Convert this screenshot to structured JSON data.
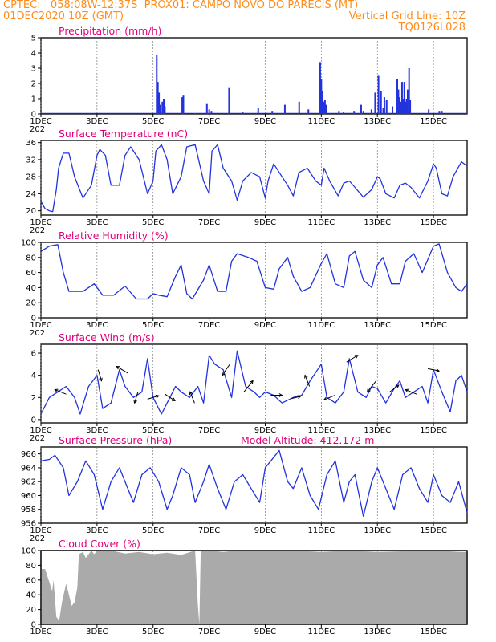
{
  "header": {
    "line1": "CPTEC:   058:08W-12:37S  PROX01: CAMPO NOVO DO PARECIS (MT)",
    "line2_left": "01DEC2020 10Z (GMT)",
    "line2_right": "Vertical Grid Line: 10Z",
    "line3_right": "TQ0126L028"
  },
  "model_altitude": "Model Altitude: 412.172 m",
  "x_axis": {
    "start": "2020-12-01T10Z",
    "days_shown": 15.2,
    "tick_labels": [
      "1DEC",
      "3DEC",
      "5DEC",
      "7DEC",
      "9DEC",
      "11DEC",
      "13DEC",
      "15DEC"
    ],
    "tick_days": [
      0,
      2,
      4,
      6,
      8,
      10,
      12,
      14
    ],
    "year_fragment": "202"
  },
  "colors": {
    "header": "#ff8c1a",
    "title": "#e0007a",
    "line": "#2233dd",
    "cloud": "#aaaaaa"
  },
  "chart_data": [
    {
      "type": "bar",
      "title": "Precipitation (mm/h)",
      "ylim": [
        0,
        5
      ],
      "yticks": [
        0,
        1,
        2,
        3,
        4,
        5
      ],
      "values": [
        [
          4.13,
          3.9
        ],
        [
          4.17,
          2.1
        ],
        [
          4.21,
          1.4
        ],
        [
          4.25,
          0.6
        ],
        [
          4.33,
          0.8
        ],
        [
          4.38,
          1.0
        ],
        [
          4.42,
          0.5
        ],
        [
          5.04,
          1.1
        ],
        [
          5.08,
          1.2
        ],
        [
          5.5,
          0.05
        ],
        [
          5.92,
          0.7
        ],
        [
          6.0,
          0.3
        ],
        [
          6.08,
          0.2
        ],
        [
          6.71,
          1.7
        ],
        [
          7.2,
          0.1
        ],
        [
          7.75,
          0.4
        ],
        [
          8.25,
          0.2
        ],
        [
          8.7,
          0.6
        ],
        [
          9.21,
          0.8
        ],
        [
          9.54,
          0.3
        ],
        [
          9.96,
          3.4
        ],
        [
          10.0,
          2.3
        ],
        [
          10.04,
          1.5
        ],
        [
          10.08,
          0.8
        ],
        [
          10.13,
          0.9
        ],
        [
          10.17,
          0.6
        ],
        [
          10.63,
          0.2
        ],
        [
          10.79,
          0.1
        ],
        [
          11.17,
          0.2
        ],
        [
          11.42,
          0.6
        ],
        [
          11.5,
          0.2
        ],
        [
          11.79,
          0.3
        ],
        [
          11.92,
          1.4
        ],
        [
          12.04,
          2.5
        ],
        [
          12.13,
          1.5
        ],
        [
          12.21,
          0.4
        ],
        [
          12.25,
          1.1
        ],
        [
          12.33,
          0.9
        ],
        [
          12.54,
          0.5
        ],
        [
          12.71,
          2.3
        ],
        [
          12.75,
          1.6
        ],
        [
          12.79,
          1.1
        ],
        [
          12.83,
          0.8
        ],
        [
          12.88,
          2.1
        ],
        [
          12.92,
          1.0
        ],
        [
          12.96,
          2.1
        ],
        [
          13.0,
          0.8
        ],
        [
          13.04,
          1.0
        ],
        [
          13.08,
          1.6
        ],
        [
          13.13,
          3.0
        ],
        [
          13.17,
          0.9
        ],
        [
          13.83,
          0.3
        ],
        [
          14.21,
          0.2
        ],
        [
          14.3,
          0.2
        ]
      ]
    },
    {
      "type": "line",
      "title": "Surface Temperature (nC)",
      "ylim": [
        19,
        36.5
      ],
      "yticks": [
        20,
        24,
        28,
        32,
        36
      ],
      "x": [
        0,
        0.15,
        0.3,
        0.42,
        0.55,
        0.63,
        0.8,
        1.0,
        1.2,
        1.5,
        1.8,
        2.0,
        2.1,
        2.3,
        2.5,
        2.8,
        3.0,
        3.2,
        3.5,
        3.8,
        4.0,
        4.1,
        4.3,
        4.5,
        4.7,
        5.0,
        5.2,
        5.5,
        5.8,
        6.0,
        6.1,
        6.3,
        6.5,
        6.8,
        7.0,
        7.2,
        7.5,
        7.8,
        8.0,
        8.1,
        8.3,
        8.6,
        8.8,
        9.0,
        9.2,
        9.5,
        9.8,
        10.0,
        10.1,
        10.3,
        10.6,
        10.8,
        11.0,
        11.2,
        11.5,
        11.8,
        12.0,
        12.1,
        12.3,
        12.6,
        12.8,
        13.0,
        13.2,
        13.5,
        13.8,
        14.0,
        14.1,
        14.3,
        14.5,
        14.7,
        15.0,
        15.2
      ],
      "y": [
        22.2,
        20.5,
        20,
        19.8,
        25,
        30,
        33.5,
        33.5,
        28,
        23,
        26,
        33,
        34.4,
        33,
        26,
        26,
        33,
        35,
        32,
        24,
        27,
        34,
        35.5,
        32,
        24,
        28,
        35,
        35.5,
        27,
        24,
        34,
        35.5,
        30,
        27,
        22.5,
        27,
        29,
        28,
        23,
        27,
        31,
        28,
        26,
        23.5,
        29,
        30,
        27,
        26,
        30,
        27,
        23.5,
        26.5,
        27,
        25.5,
        23.2,
        25,
        28,
        27.5,
        24,
        23,
        26,
        26.5,
        25.5,
        23,
        27,
        31,
        30,
        24,
        23.5,
        28,
        31.5,
        30.5
      ]
    },
    {
      "type": "line",
      "title": "Relative Humidity (%)",
      "ylim": [
        0,
        100
      ],
      "yticks": [
        0,
        20,
        40,
        60,
        80,
        100
      ],
      "x": [
        0,
        0.3,
        0.6,
        0.8,
        1.0,
        1.5,
        1.9,
        2.2,
        2.6,
        3.0,
        3.4,
        3.8,
        4.0,
        4.2,
        4.5,
        4.8,
        5.0,
        5.2,
        5.4,
        5.8,
        6.0,
        6.3,
        6.6,
        6.8,
        7.0,
        7.4,
        7.7,
        8.0,
        8.3,
        8.5,
        8.8,
        9.0,
        9.3,
        9.6,
        10.0,
        10.2,
        10.5,
        10.8,
        11.0,
        11.2,
        11.5,
        11.8,
        12.0,
        12.2,
        12.5,
        12.8,
        13.0,
        13.3,
        13.6,
        14.0,
        14.2,
        14.5,
        14.8,
        15.0,
        15.2
      ],
      "y": [
        88,
        95,
        97,
        60,
        35,
        35,
        45,
        30,
        30,
        42,
        25,
        25,
        32,
        30,
        28,
        55,
        70,
        32,
        25,
        50,
        70,
        35,
        35,
        75,
        85,
        80,
        75,
        40,
        38,
        65,
        80,
        55,
        35,
        40,
        72,
        85,
        45,
        40,
        82,
        88,
        50,
        40,
        70,
        80,
        45,
        45,
        75,
        85,
        60,
        95,
        98,
        60,
        40,
        35,
        45
      ]
    },
    {
      "type": "line",
      "title": "Surface Wind (m/s)",
      "ylim": [
        -0.3,
        6.8
      ],
      "yticks": [
        0,
        2,
        4,
        6
      ],
      "x": [
        0,
        0.3,
        0.6,
        0.9,
        1.2,
        1.4,
        1.7,
        2.0,
        2.2,
        2.5,
        2.8,
        3.0,
        3.3,
        3.6,
        3.8,
        4.0,
        4.3,
        4.6,
        4.8,
        5.0,
        5.3,
        5.6,
        5.8,
        6.0,
        6.2,
        6.5,
        6.8,
        7.0,
        7.3,
        7.6,
        7.8,
        8.0,
        8.3,
        8.6,
        9.0,
        9.3,
        9.6,
        10.0,
        10.2,
        10.5,
        10.8,
        11.0,
        11.3,
        11.6,
        11.8,
        12.0,
        12.3,
        12.6,
        12.8,
        13.0,
        13.3,
        13.6,
        13.8,
        14.0,
        14.3,
        14.6,
        14.8,
        15.0,
        15.2
      ],
      "y": [
        0.5,
        2.0,
        2.5,
        3.0,
        2.0,
        0.5,
        3.0,
        4.0,
        1.0,
        1.5,
        4.5,
        3.0,
        2.0,
        2.5,
        5.5,
        2.0,
        0.5,
        2.0,
        3.0,
        2.5,
        2.0,
        3.0,
        1.5,
        5.8,
        5.0,
        4.5,
        2.0,
        6.2,
        3.0,
        2.5,
        2.0,
        2.5,
        2.2,
        1.5,
        2.0,
        2.2,
        3.5,
        5.0,
        2.0,
        1.5,
        2.5,
        5.5,
        2.5,
        2.0,
        3.0,
        2.8,
        1.5,
        2.8,
        3.5,
        2.0,
        2.5,
        3.0,
        1.5,
        4.5,
        2.5,
        0.7,
        3.5,
        4.0,
        2.5
      ],
      "arrows": [
        [
          0.7,
          -1,
          0.4
        ],
        [
          2.1,
          0.3,
          -1
        ],
        [
          2.9,
          -1,
          0.6
        ],
        [
          3.4,
          -0.3,
          -1
        ],
        [
          4.0,
          1,
          0.3
        ],
        [
          4.6,
          0.9,
          -0.6
        ],
        [
          5.4,
          -0.4,
          1
        ],
        [
          6.6,
          -0.7,
          -1
        ],
        [
          7.4,
          0.8,
          1
        ],
        [
          8.4,
          1,
          0
        ],
        [
          9.1,
          0.8,
          0.2
        ],
        [
          9.5,
          -0.4,
          1
        ],
        [
          10.3,
          -1,
          -0.4
        ],
        [
          11.1,
          1,
          0.6
        ],
        [
          11.8,
          -0.8,
          -1
        ],
        [
          12.6,
          0.8,
          0.6
        ],
        [
          13.2,
          -1,
          0.4
        ],
        [
          14.0,
          1,
          -0.2
        ]
      ]
    },
    {
      "type": "line",
      "title": "Surface Pressure (hPa)",
      "ylim": [
        956,
        967
      ],
      "yticks": [
        956,
        958,
        960,
        962,
        964,
        966
      ],
      "x": [
        0,
        0.3,
        0.5,
        0.8,
        1.0,
        1.3,
        1.6,
        1.9,
        2.2,
        2.5,
        2.8,
        3.0,
        3.3,
        3.6,
        3.9,
        4.2,
        4.5,
        4.7,
        5.0,
        5.3,
        5.5,
        5.8,
        6.0,
        6.3,
        6.6,
        6.9,
        7.2,
        7.5,
        7.8,
        8.0,
        8.2,
        8.5,
        8.8,
        9.0,
        9.3,
        9.6,
        9.9,
        10.2,
        10.5,
        10.8,
        11.0,
        11.2,
        11.5,
        11.8,
        12.0,
        12.3,
        12.6,
        12.9,
        13.2,
        13.5,
        13.8,
        14.0,
        14.3,
        14.6,
        14.9,
        15.2
      ],
      "y": [
        965,
        965.2,
        965.8,
        964,
        960,
        962,
        965,
        963,
        958,
        962,
        964,
        962,
        959,
        963,
        964,
        962,
        958,
        960,
        964,
        963,
        959,
        962,
        964.5,
        961,
        958,
        962,
        963,
        961,
        959,
        964,
        965,
        966.5,
        962,
        961,
        964,
        960,
        958,
        963,
        965,
        959,
        962,
        963,
        957,
        962,
        964,
        961,
        958,
        963,
        964,
        961,
        959,
        963,
        960,
        959,
        962,
        957.5
      ]
    },
    {
      "type": "area",
      "title": "Cloud Cover (%)",
      "ylim": [
        0,
        100
      ],
      "yticks": [
        0,
        20,
        40,
        60,
        80,
        100
      ],
      "x": [
        0,
        0.15,
        0.4,
        0.45,
        0.55,
        0.65,
        0.75,
        0.9,
        1.0,
        1.1,
        1.2,
        1.3,
        1.35,
        1.5,
        1.6,
        1.7,
        1.8,
        1.9,
        2.0,
        2.5,
        3.0,
        3.5,
        4.0,
        4.5,
        5.0,
        5.5,
        5.6,
        5.65,
        5.7,
        6.0,
        6.5,
        7.0,
        8.0,
        9.0,
        10.0,
        11.0,
        12.0,
        13.0,
        14.0,
        15.0,
        15.2
      ],
      "y": [
        75,
        75,
        45,
        60,
        10,
        5,
        30,
        55,
        40,
        25,
        30,
        50,
        95,
        98,
        90,
        95,
        100,
        95,
        100,
        100,
        96,
        98,
        95,
        97,
        94,
        100,
        25,
        0,
        100,
        100,
        98,
        100,
        100,
        100,
        98,
        100,
        98,
        99,
        100,
        98,
        98
      ]
    }
  ]
}
